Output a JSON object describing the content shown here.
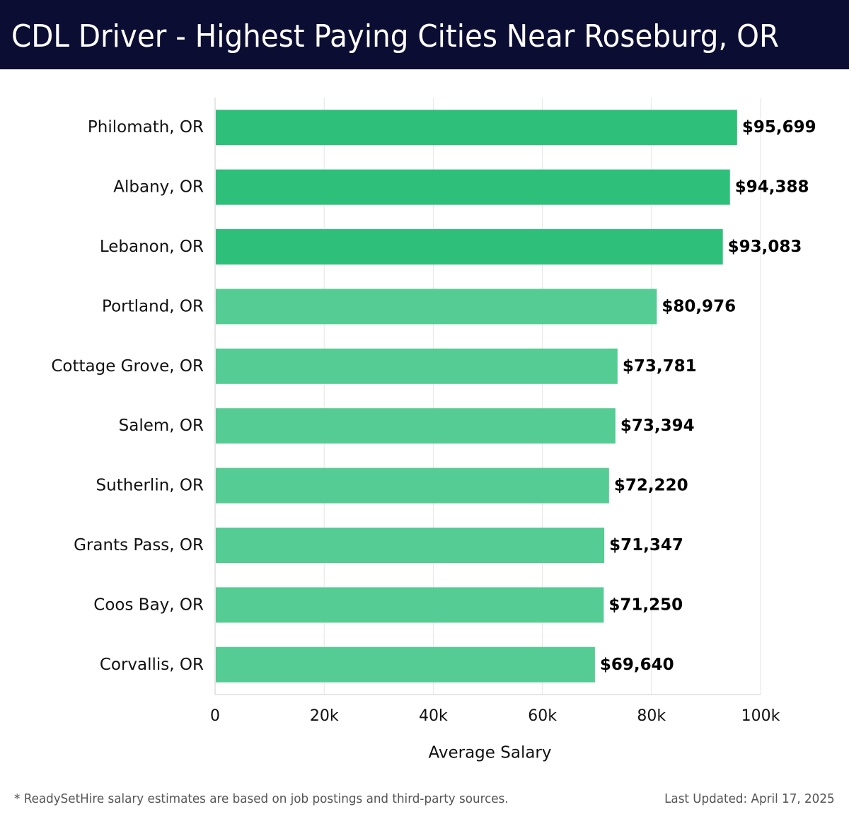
{
  "header": {
    "title": "CDL Driver - Highest Paying Cities Near Roseburg, OR"
  },
  "footer": {
    "note": "* ReadySetHire salary estimates are based on job postings and third-party sources.",
    "updated": "Last Updated: April 17, 2025"
  },
  "colors": {
    "header_bg": "#0b0d33",
    "bar_top": "#2ec07a",
    "bar_rest": "#55cc93",
    "grid": "#e5e5e5"
  },
  "chart_data": {
    "type": "bar",
    "orientation": "horizontal",
    "title": "CDL Driver - Highest Paying Cities Near Roseburg, OR",
    "xlabel": "Average Salary",
    "ylabel": "",
    "xlim": [
      0,
      100000
    ],
    "grid": true,
    "ticks": [
      {
        "value": 0,
        "label": "0"
      },
      {
        "value": 20000,
        "label": "20k"
      },
      {
        "value": 40000,
        "label": "40k"
      },
      {
        "value": 60000,
        "label": "60k"
      },
      {
        "value": 80000,
        "label": "80k"
      },
      {
        "value": 100000,
        "label": "100k"
      }
    ],
    "categories": [
      "Philomath, OR",
      "Albany, OR",
      "Lebanon, OR",
      "Portland, OR",
      "Cottage Grove, OR",
      "Salem, OR",
      "Sutherlin, OR",
      "Grants Pass, OR",
      "Coos Bay, OR",
      "Corvallis, OR"
    ],
    "values": [
      95699,
      94388,
      93083,
      80976,
      73781,
      73394,
      72220,
      71347,
      71250,
      69640
    ],
    "value_labels": [
      "$95,699",
      "$94,388",
      "$93,083",
      "$80,976",
      "$73,781",
      "$73,394",
      "$72,220",
      "$71,347",
      "$71,250",
      "$69,640"
    ],
    "highlight_top": 3
  }
}
